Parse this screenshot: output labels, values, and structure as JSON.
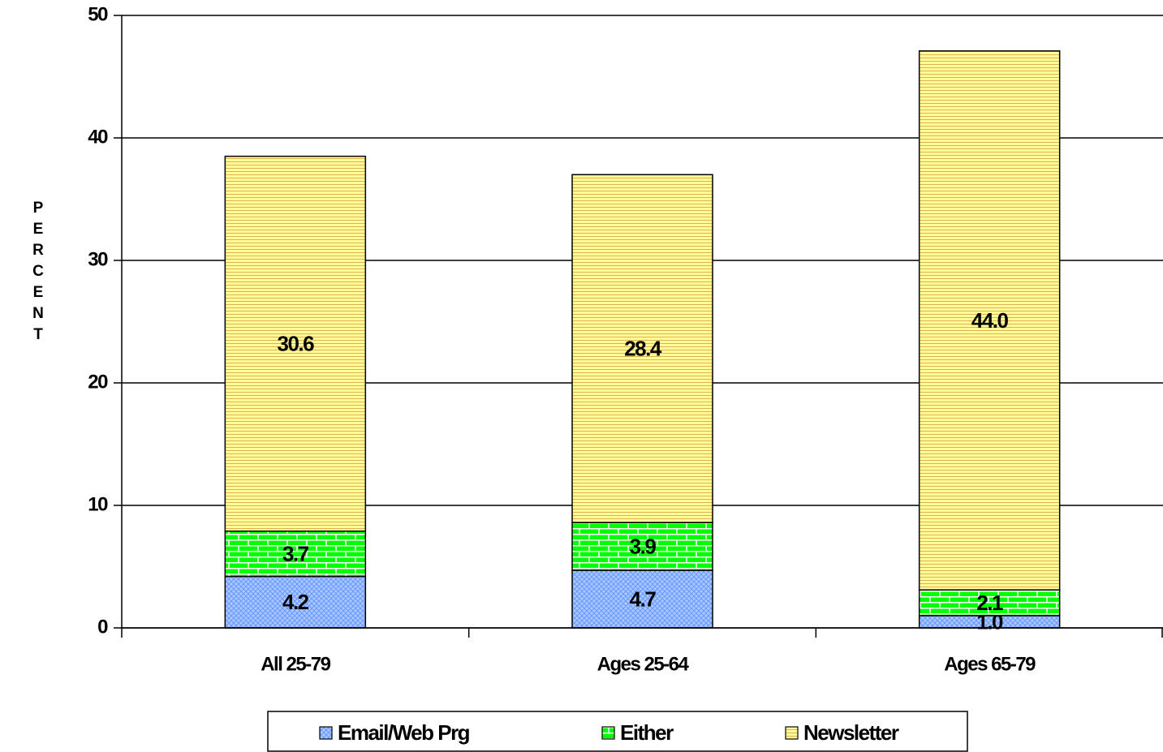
{
  "chart_data": {
    "type": "bar",
    "stacked": true,
    "y_label": "PERCENT",
    "categories": [
      "All 25-79",
      "Ages 25-64",
      "Ages 65-79"
    ],
    "series": [
      {
        "name": "Email/Web Prg",
        "color": "#6699ff",
        "values": [
          4.2,
          4.7,
          1.0
        ],
        "value_labels": [
          "4.2",
          "4.7",
          "1.0"
        ]
      },
      {
        "name": "Either",
        "color": "#00ff00",
        "values": [
          3.7,
          3.9,
          2.1
        ]
      },
      {
        "name": "Newsletter",
        "color": "#ffff99",
        "values": [
          30.6,
          28.4,
          44.0
        ],
        "value_labels": [
          "30.6",
          "28.4",
          "44.0"
        ]
      }
    ],
    "ylim": [
      0,
      50
    ],
    "yticks": [
      0,
      10,
      20,
      30,
      40,
      50
    ],
    "grid": true,
    "legend": "bottom"
  }
}
